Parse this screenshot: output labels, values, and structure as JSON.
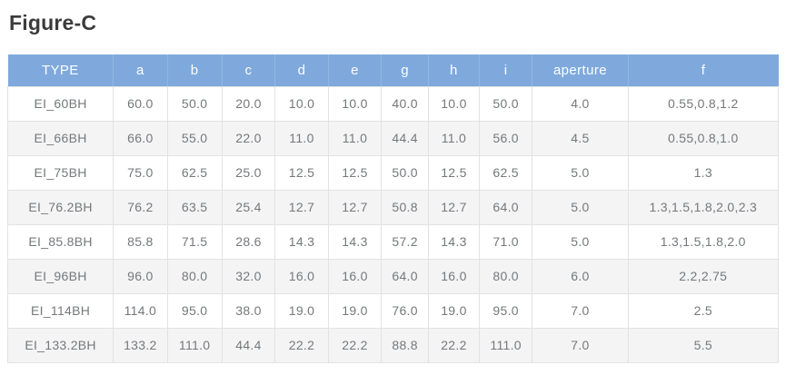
{
  "title": "Figure-C",
  "colors": {
    "header_bg": "#7FA9DC",
    "header_text": "#FDFEFF",
    "row_bg": "#FFFFFF",
    "row_alt_bg": "#F4F4F5",
    "border": "#E2E2E2",
    "cell_text": "#75787B",
    "title_text": "#3B3B3B"
  },
  "table": {
    "columns": [
      "TYPE",
      "a",
      "b",
      "c",
      "d",
      "e",
      "g",
      "h",
      "i",
      "aperture",
      "f"
    ],
    "column_widths_pct": [
      13.7,
      7.0,
      7.1,
      6.9,
      6.9,
      6.9,
      6.1,
      6.6,
      6.9,
      12.4,
      19.5
    ],
    "rows": [
      [
        "EI_60BH",
        "60.0",
        "50.0",
        "20.0",
        "10.0",
        "10.0",
        "40.0",
        "10.0",
        "50.0",
        "4.0",
        "0.55,0.8,1.2"
      ],
      [
        "EI_66BH",
        "66.0",
        "55.0",
        "22.0",
        "11.0",
        "11.0",
        "44.4",
        "11.0",
        "56.0",
        "4.5",
        "0.55,0.8,1.0"
      ],
      [
        "EI_75BH",
        "75.0",
        "62.5",
        "25.0",
        "12.5",
        "12.5",
        "50.0",
        "12.5",
        "62.5",
        "5.0",
        "1.3"
      ],
      [
        "EI_76.2BH",
        "76.2",
        "63.5",
        "25.4",
        "12.7",
        "12.7",
        "50.8",
        "12.7",
        "64.0",
        "5.0",
        "1.3,1.5,1.8,2.0,2.3"
      ],
      [
        "EI_85.8BH",
        "85.8",
        "71.5",
        "28.6",
        "14.3",
        "14.3",
        "57.2",
        "14.3",
        "71.0",
        "5.0",
        "1.3,1.5,1.8,2.0"
      ],
      [
        "EI_96BH",
        "96.0",
        "80.0",
        "32.0",
        "16.0",
        "16.0",
        "64.0",
        "16.0",
        "80.0",
        "6.0",
        "2.2,2.75"
      ],
      [
        "EI_114BH",
        "114.0",
        "95.0",
        "38.0",
        "19.0",
        "19.0",
        "76.0",
        "19.0",
        "95.0",
        "7.0",
        "2.5"
      ],
      [
        "EI_133.2BH",
        "133.2",
        "111.0",
        "44.4",
        "22.2",
        "22.2",
        "88.8",
        "22.2",
        "111.0",
        "7.0",
        "5.5"
      ]
    ]
  }
}
